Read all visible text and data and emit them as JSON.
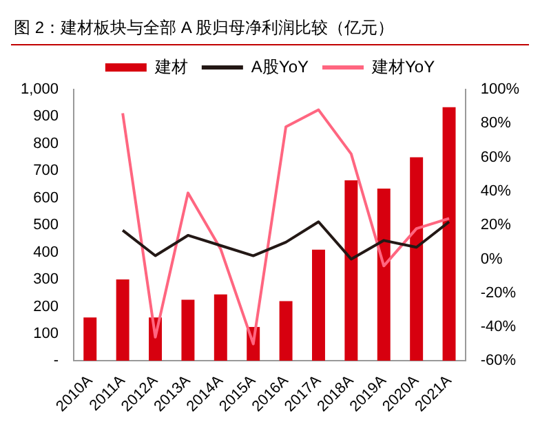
{
  "chart_data": {
    "type": "bar",
    "title": "图 2：建材板块与全部 A 股归母净利润比较（亿元）",
    "categories": [
      "2010A",
      "2011A",
      "2012A",
      "2013A",
      "2014A",
      "2015A",
      "2016A",
      "2017A",
      "2018A",
      "2019A",
      "2020A",
      "2021A"
    ],
    "series": [
      {
        "name": "建材",
        "color": "#d7000f",
        "values": [
          160,
          300,
          160,
          225,
          245,
          125,
          220,
          410,
          665,
          635,
          750,
          935
        ]
      },
      {
        "name": "A股YoY",
        "type": "line",
        "axis": "y2",
        "color": "#231815",
        "values": [
          null,
          17,
          2,
          14,
          8,
          2,
          10,
          22,
          0,
          11,
          7,
          22
        ]
      },
      {
        "name": "建材YoY",
        "type": "line",
        "axis": "y2",
        "color": "#ff6680",
        "values": [
          null,
          86,
          -46,
          39,
          6,
          -50,
          78,
          88,
          62,
          -4,
          18,
          24
        ]
      }
    ],
    "ylim": [
      0,
      1000
    ],
    "yticks": [
      {
        "value": 0,
        "label": "-"
      },
      {
        "value": 100,
        "label": "100"
      },
      {
        "value": 200,
        "label": "200"
      },
      {
        "value": 300,
        "label": "300"
      },
      {
        "value": 400,
        "label": "400"
      },
      {
        "value": 500,
        "label": "500"
      },
      {
        "value": 600,
        "label": "600"
      },
      {
        "value": 700,
        "label": "700"
      },
      {
        "value": 800,
        "label": "800"
      },
      {
        "value": 900,
        "label": "900"
      },
      {
        "value": 1000,
        "label": "1,000"
      }
    ],
    "y2lim": [
      -60,
      100
    ],
    "y2ticks": [
      {
        "value": -60,
        "label": "-60%"
      },
      {
        "value": -40,
        "label": "-40%"
      },
      {
        "value": -20,
        "label": "-20%"
      },
      {
        "value": 0,
        "label": "0%"
      },
      {
        "value": 20,
        "label": "20%"
      },
      {
        "value": 40,
        "label": "40%"
      },
      {
        "value": 60,
        "label": "60%"
      },
      {
        "value": 80,
        "label": "80%"
      },
      {
        "value": 100,
        "label": "100%"
      }
    ],
    "legend": "top",
    "marker": "none"
  }
}
